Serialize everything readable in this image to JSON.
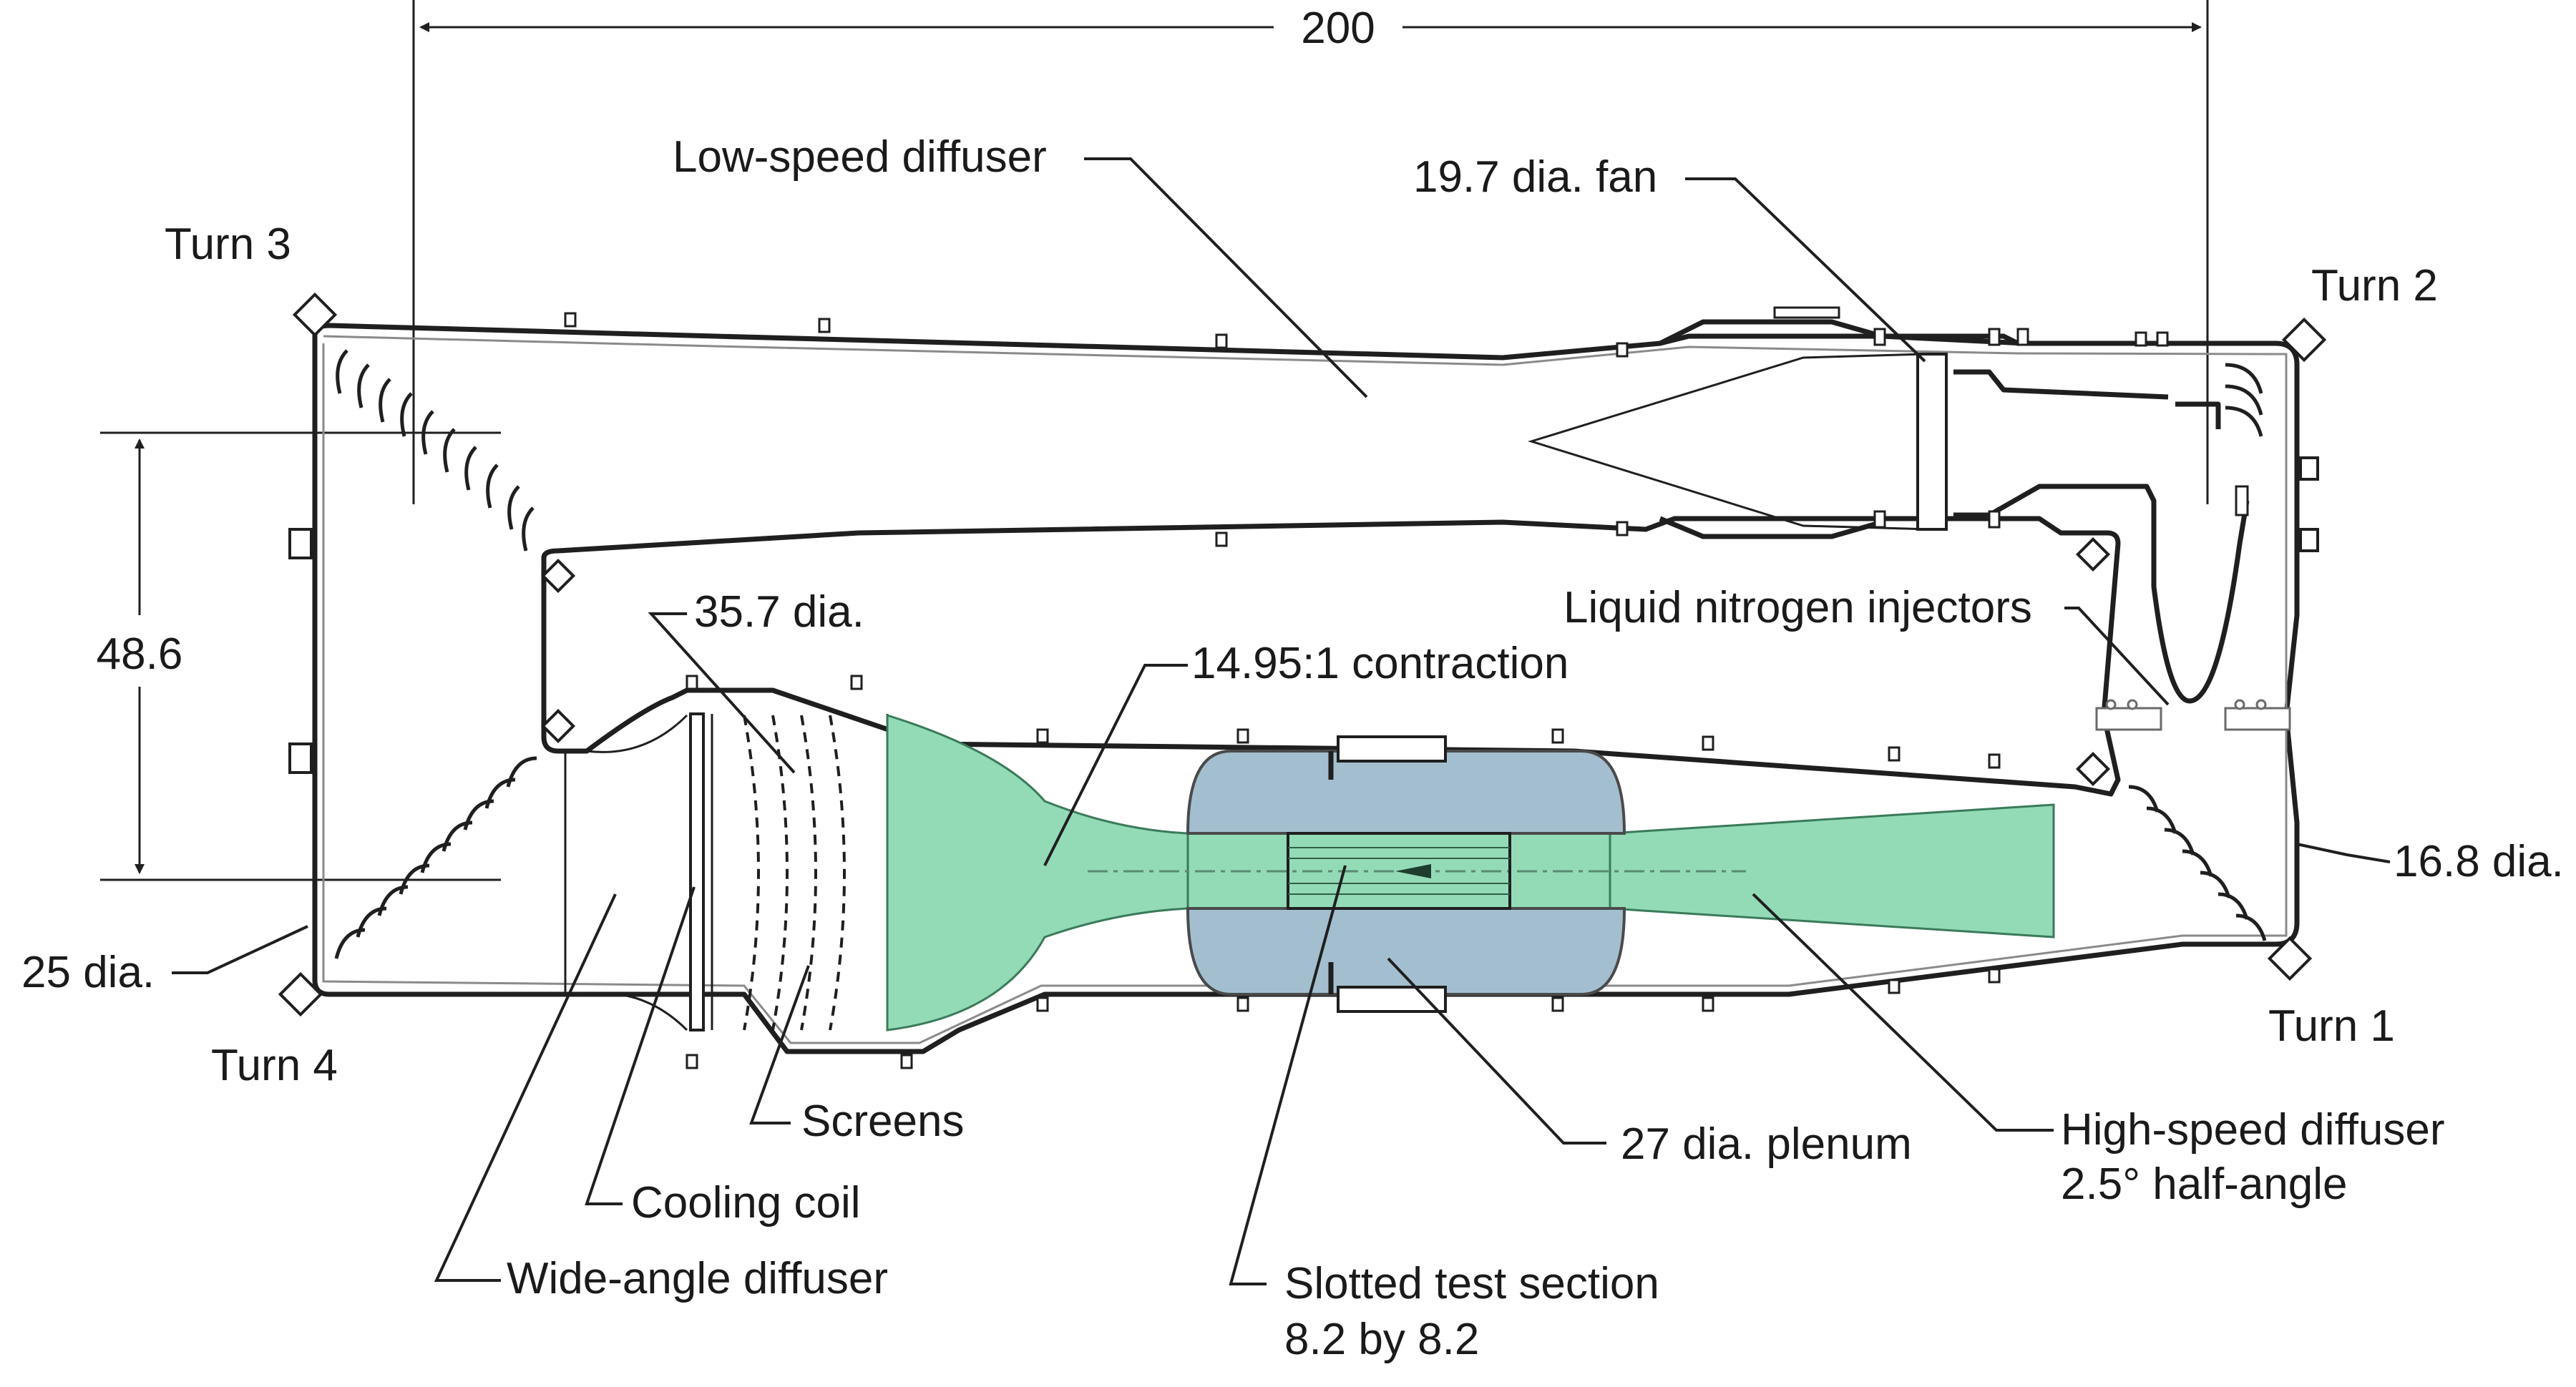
{
  "colors": {
    "flow_fill": "#93dbb6",
    "flow_stroke": "#3a7a5a",
    "plenum_fill": "#a3bfcf",
    "plenum_stroke": "#4a4a4a",
    "wall": "#1f1f1f",
    "background": "#ffffff"
  },
  "dimensions": {
    "overall_length": "200",
    "height": "48.6"
  },
  "turns": {
    "turn1": "Turn 1",
    "turn2": "Turn 2",
    "turn3": "Turn 3",
    "turn4": "Turn 4"
  },
  "labels": {
    "low_speed_diffuser": "Low-speed diffuser",
    "fan": "19.7 dia. fan",
    "liquid_nitrogen": "Liquid nitrogen injectors",
    "return_dia": "16.8 dia.",
    "settling_dia": "35.7 dia.",
    "contraction": "14.95:1 contraction",
    "turn4_dia": "25 dia.",
    "screens": "Screens",
    "cooling_coil": "Cooling coil",
    "wide_angle_diffuser": "Wide-angle diffuser",
    "plenum": "27 dia. plenum",
    "high_speed_diffuser_line1": "High-speed diffuser",
    "high_speed_diffuser_line2": "2.5° half-angle",
    "test_section_line1": "Slotted test section",
    "test_section_line2": "8.2 by 8.2"
  }
}
